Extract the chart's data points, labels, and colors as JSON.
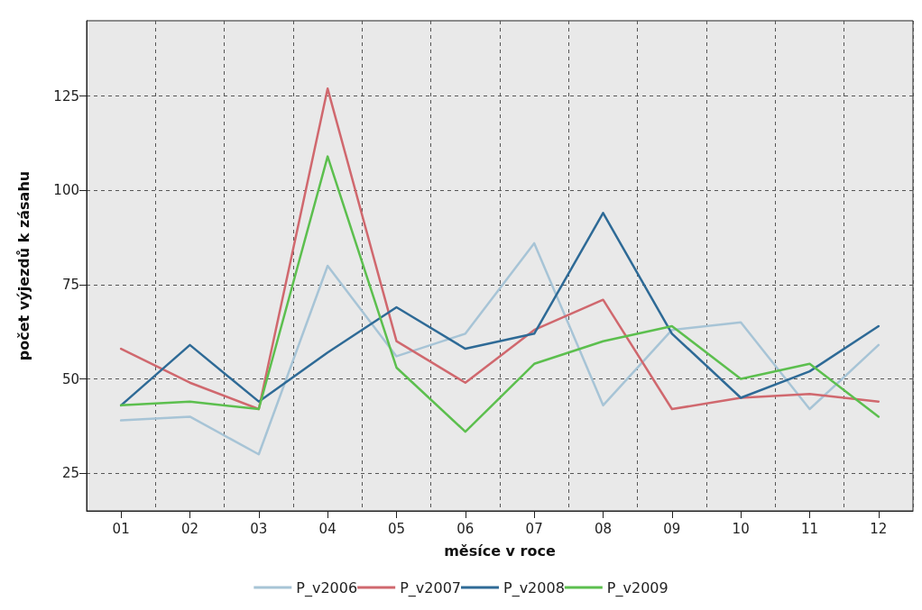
{
  "chart_data": {
    "type": "line",
    "xlabel": "měsíce v roce",
    "ylabel": "počet výjezdů k zásahu",
    "categories": [
      "01",
      "02",
      "03",
      "04",
      "05",
      "06",
      "07",
      "08",
      "09",
      "10",
      "11",
      "12"
    ],
    "series": [
      {
        "name": "P_v2006",
        "color": "#a7c4d6",
        "values": [
          39,
          40,
          30,
          80,
          56,
          62,
          86,
          43,
          63,
          65,
          42,
          59
        ]
      },
      {
        "name": "P_v2007",
        "color": "#d0686e",
        "values": [
          58,
          49,
          42,
          127,
          60,
          49,
          63,
          71,
          42,
          45,
          46,
          44
        ]
      },
      {
        "name": "P_v2008",
        "color": "#2e6a96",
        "values": [
          43,
          59,
          44,
          57,
          69,
          58,
          62,
          94,
          62,
          45,
          52,
          64
        ]
      },
      {
        "name": "P_v2009",
        "color": "#5cbf4e",
        "values": [
          43,
          44,
          42,
          109,
          53,
          36,
          54,
          60,
          64,
          50,
          54,
          40
        ]
      }
    ],
    "ylim": [
      15,
      145
    ],
    "yticks": [
      25,
      50,
      75,
      100,
      125
    ],
    "grid": true,
    "legend": "bottom",
    "marker": "none",
    "line_style": "solid"
  }
}
